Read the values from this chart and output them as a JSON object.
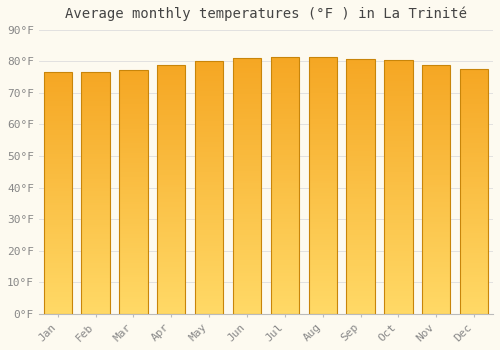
{
  "title": "Average monthly temperatures (°F ) in La Trinité",
  "months": [
    "Jan",
    "Feb",
    "Mar",
    "Apr",
    "May",
    "Jun",
    "Jul",
    "Aug",
    "Sep",
    "Oct",
    "Nov",
    "Dec"
  ],
  "values": [
    76.5,
    76.5,
    77.2,
    78.8,
    80.2,
    81.0,
    81.2,
    81.2,
    80.8,
    80.3,
    78.8,
    77.4
  ],
  "bar_color_top": "#F5A623",
  "bar_color_bottom": "#FFD966",
  "bar_edge_color": "#C8850A",
  "background_color": "#FDFAF0",
  "grid_color": "#DDDDDD",
  "ylim": [
    0,
    90
  ],
  "yticks": [
    0,
    10,
    20,
    30,
    40,
    50,
    60,
    70,
    80,
    90
  ],
  "ytick_labels": [
    "0°F",
    "10°F",
    "20°F",
    "30°F",
    "40°F",
    "50°F",
    "60°F",
    "70°F",
    "80°F",
    "90°F"
  ],
  "title_fontsize": 10,
  "tick_fontsize": 8,
  "bar_width": 0.75,
  "figsize": [
    5.0,
    3.5
  ],
  "dpi": 100
}
